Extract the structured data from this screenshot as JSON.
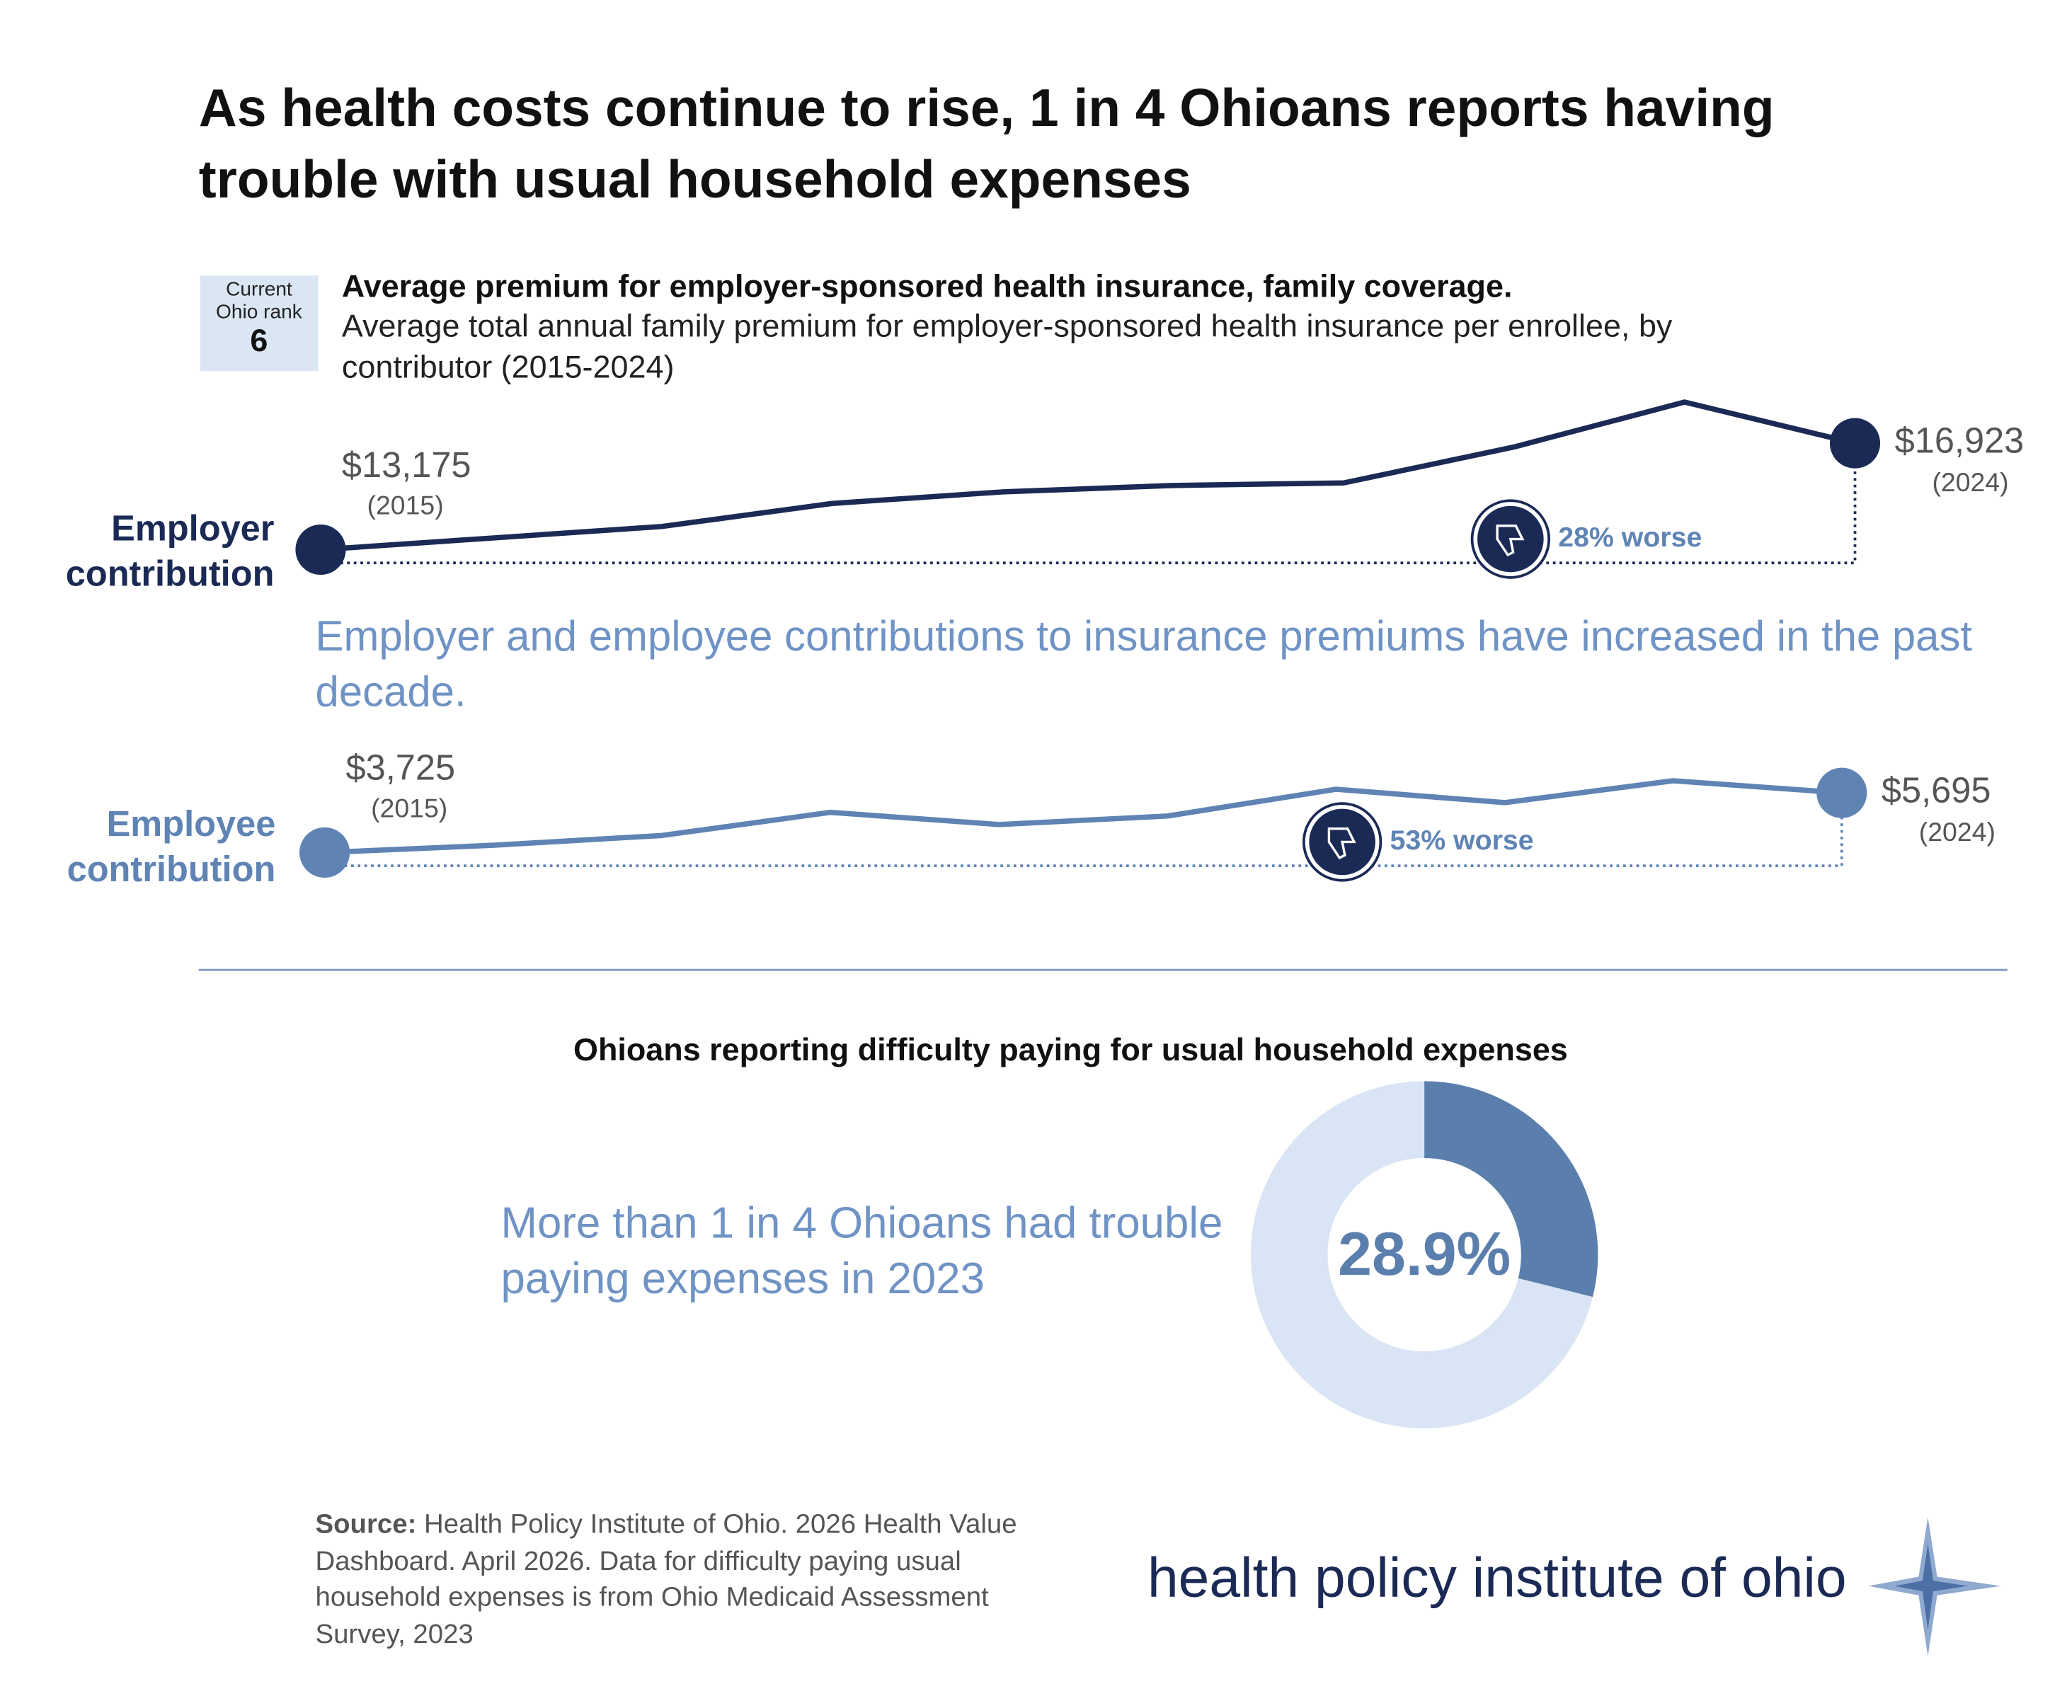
{
  "title": "As health costs continue to rise, 1 in 4 Ohioans reports having trouble with usual household expenses",
  "rank": {
    "label": "Current Ohio rank",
    "value": 6
  },
  "chart_data": [
    {
      "type": "line",
      "title": "Average premium for employer-sponsored health insurance, family coverage.",
      "subtitle": "Average total annual family premium for employer-sponsored health insurance per enrollee, by contributor (2015-2024)",
      "annotation": "Employer and employee contributions to insurance premiums have increased in the past decade.",
      "x": [
        2015,
        2016,
        2017,
        2018,
        2019,
        2020,
        2021,
        2022,
        2023,
        2024
      ],
      "xlim": [
        2015,
        2024
      ],
      "ylim": [
        12000,
        19000
      ],
      "series": [
        {
          "name": "Employer contribution",
          "color": "#1b2a55",
          "values": [
            13175,
            13582,
            13990,
            14802,
            15209,
            15435,
            15525,
            16791,
            18373,
            16923
          ],
          "value_labels": [
            "$13,175",
            null,
            null,
            null,
            null,
            null,
            null,
            null,
            null,
            "$16,923"
          ]
        }
      ],
      "start_label": "(2015)",
      "end_label": "(2024)",
      "change_label": "28% worse"
    },
    {
      "type": "line",
      "x": [
        2015,
        2016,
        2017,
        2018,
        2019,
        2020,
        2021,
        2022,
        2023,
        2024
      ],
      "xlim": [
        2015,
        2024
      ],
      "ylim": [
        3000,
        6500
      ],
      "series": [
        {
          "name": "Employee contribution",
          "color": "#5f84b4",
          "values": [
            3725,
            3966,
            4288,
            5052,
            4650,
            4931,
            5815,
            5373,
            6096,
            5695
          ],
          "value_labels": [
            "$3,725",
            null,
            null,
            null,
            null,
            null,
            null,
            null,
            null,
            "$5,695"
          ]
        }
      ],
      "start_label": "(2015)",
      "end_label": "(2024)",
      "change_label": "53% worse"
    },
    {
      "type": "donut",
      "title": "Ohioans reporting difficulty paying for usual household expenses",
      "annotation": "More than 1 in 4 Ohioans had trouble paying expenses in 2023",
      "values": [
        28.9
      ],
      "value_labels": [
        "28.9%"
      ],
      "color": "#5b7fad",
      "background_color": "#d9e4f4"
    }
  ],
  "source": {
    "label": "Source:",
    "text": "Health Policy Institute of Ohio. 2026 Health Value Dashboard. April 2026.  Data for difficulty paying usual household expenses is from Ohio Medicaid Assessment Survey, 2023"
  },
  "logo": "health policy institute of ohio"
}
